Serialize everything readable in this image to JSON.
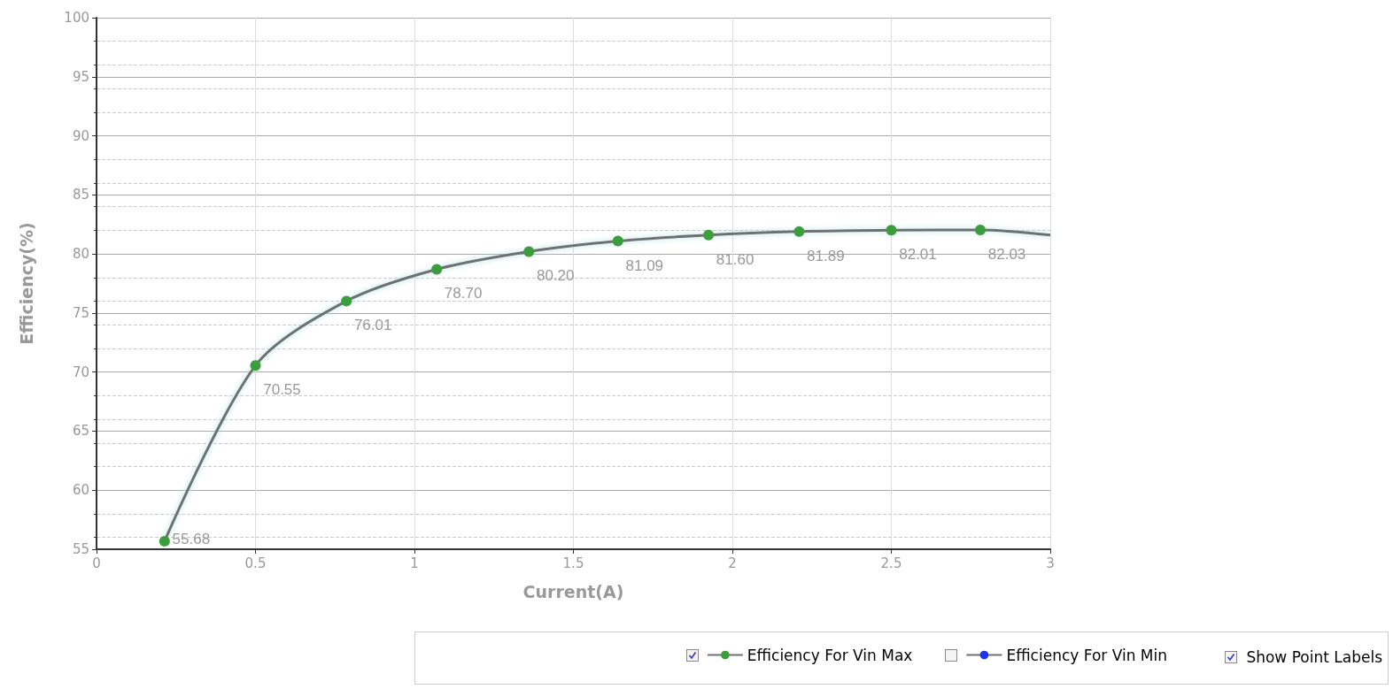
{
  "chart_data": {
    "type": "line",
    "xlabel": "Current(A)",
    "ylabel": "Efficiency(%)",
    "x": [
      0.214,
      0.5,
      0.786,
      1.07,
      1.36,
      1.64,
      1.925,
      2.21,
      2.5,
      2.78,
      3
    ],
    "series": [
      {
        "name": "Efficiency For Vin Max",
        "color": "#3c9d3c",
        "values": [
          55.68,
          70.55,
          76.01,
          78.7,
          80.2,
          81.09,
          81.6,
          81.89,
          82.01,
          82.03,
          81.6
        ],
        "value_labels": [
          "55.68",
          "70.55",
          "76.01",
          "78.70",
          "80.20",
          "81.09",
          "81.60",
          "81.89",
          "82.01",
          "82.03",
          null
        ]
      },
      {
        "name": "Efficiency For Vin Min",
        "color": "#2233ee",
        "values": [
          null,
          null,
          null,
          null,
          null,
          null,
          null,
          null,
          null,
          null,
          null
        ]
      }
    ],
    "xlim": [
      0,
      3
    ],
    "xticks": [
      0,
      0.5,
      1,
      1.5,
      2,
      2.5,
      3
    ],
    "ylim": [
      55,
      100
    ],
    "yticks": [
      55,
      60,
      65,
      70,
      75,
      80,
      85,
      90,
      95,
      100
    ],
    "grid": true,
    "legend": "bottom right",
    "marker": "circle",
    "line_style": "solid",
    "annotations": [
      "Show Point Labels"
    ]
  }
}
